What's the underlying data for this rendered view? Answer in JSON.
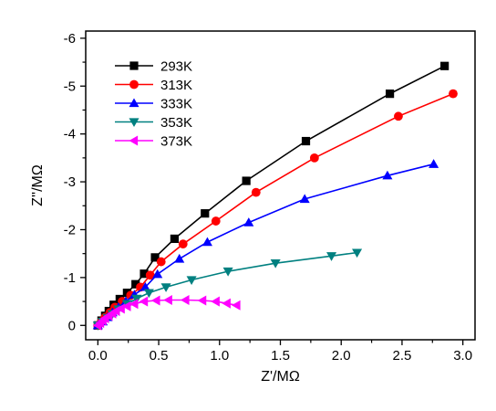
{
  "chart_data": {
    "type": "scatter",
    "xlabel": "Z'/MΩ",
    "ylabel": "Z''/MΩ",
    "xlim": [
      -0.1,
      3.1
    ],
    "ylim": [
      0.3,
      -6.15
    ],
    "y_axis_inverted": true,
    "x_ticks": [
      "0.0",
      "0.5",
      "1.0",
      "1.5",
      "2.0",
      "2.5",
      "3.0"
    ],
    "y_ticks": [
      "0",
      "-1",
      "-2",
      "-3",
      "-4",
      "-5",
      "-6"
    ],
    "legend_position": "top-left",
    "grid": false,
    "series": [
      {
        "name": "293K",
        "color": "#000000",
        "marker": "square",
        "x": [
          0.0,
          0.03,
          0.06,
          0.09,
          0.13,
          0.18,
          0.24,
          0.31,
          0.38,
          0.47,
          0.63,
          0.88,
          1.22,
          1.71,
          2.4,
          2.85
        ],
        "y": [
          0.0,
          -0.1,
          -0.2,
          -0.3,
          -0.43,
          -0.55,
          -0.68,
          -0.86,
          -1.08,
          -1.42,
          -1.81,
          -2.34,
          -3.02,
          -3.85,
          -4.84,
          -5.42
        ]
      },
      {
        "name": "313K",
        "color": "#ff0000",
        "marker": "circle",
        "x": [
          0.0,
          0.03,
          0.06,
          0.1,
          0.14,
          0.2,
          0.27,
          0.35,
          0.43,
          0.52,
          0.7,
          0.97,
          1.3,
          1.78,
          2.47,
          2.92
        ],
        "y": [
          0.0,
          -0.08,
          -0.17,
          -0.27,
          -0.38,
          -0.5,
          -0.63,
          -0.8,
          -1.05,
          -1.33,
          -1.7,
          -2.18,
          -2.78,
          -3.5,
          -4.37,
          -4.84
        ]
      },
      {
        "name": "333K",
        "color": "#0000ff",
        "marker": "triangle-up",
        "x": [
          0.0,
          0.04,
          0.08,
          0.12,
          0.17,
          0.23,
          0.3,
          0.39,
          0.49,
          0.67,
          0.9,
          1.24,
          1.7,
          2.38,
          2.76
        ],
        "y": [
          0.0,
          -0.08,
          -0.17,
          -0.27,
          -0.38,
          -0.5,
          -0.64,
          -0.8,
          -1.07,
          -1.39,
          -1.74,
          -2.15,
          -2.64,
          -3.13,
          -3.37
        ]
      },
      {
        "name": "353K",
        "color": "#008080",
        "marker": "triangle-down",
        "x": [
          0.0,
          0.04,
          0.08,
          0.12,
          0.17,
          0.24,
          0.32,
          0.42,
          0.56,
          0.77,
          1.07,
          1.46,
          1.92,
          2.13
        ],
        "y": [
          0.0,
          -0.08,
          -0.16,
          -0.24,
          -0.34,
          -0.45,
          -0.56,
          -0.68,
          -0.8,
          -0.95,
          -1.13,
          -1.3,
          -1.45,
          -1.52
        ]
      },
      {
        "name": "373K",
        "color": "#ff00ff",
        "marker": "triangle-left",
        "x": [
          0.0,
          0.02,
          0.04,
          0.06,
          0.09,
          0.12,
          0.15,
          0.19,
          0.24,
          0.3,
          0.38,
          0.48,
          0.58,
          0.72,
          0.86,
          0.97,
          1.06,
          1.14
        ],
        "y": [
          0.0,
          -0.05,
          -0.1,
          -0.15,
          -0.2,
          -0.25,
          -0.3,
          -0.35,
          -0.4,
          -0.45,
          -0.5,
          -0.52,
          -0.53,
          -0.53,
          -0.52,
          -0.5,
          -0.46,
          -0.42
        ]
      }
    ]
  }
}
